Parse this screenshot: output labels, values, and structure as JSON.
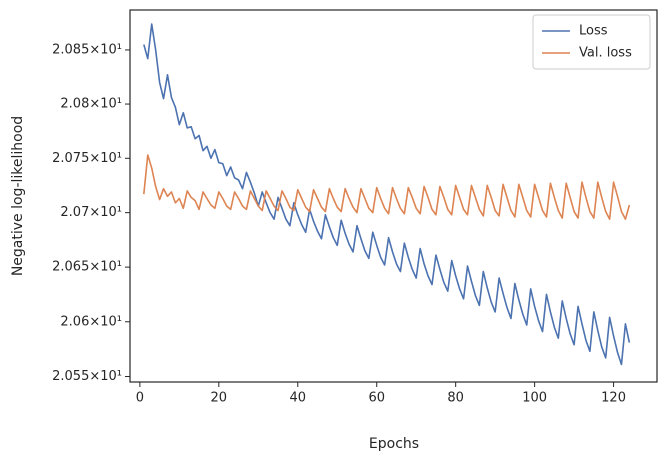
{
  "chart_data": {
    "type": "line",
    "xlabel": "Epochs",
    "ylabel": "Negative log-likelihood",
    "log_y": true,
    "grid": false,
    "legend": "upper right",
    "x": [
      1,
      2,
      3,
      4,
      5,
      6,
      7,
      8,
      9,
      10,
      11,
      12,
      13,
      14,
      15,
      16,
      17,
      18,
      19,
      20,
      21,
      22,
      23,
      24,
      25,
      26,
      27,
      28,
      29,
      30,
      31,
      32,
      33,
      34,
      35,
      36,
      37,
      38,
      39,
      40,
      41,
      42,
      43,
      44,
      45,
      46,
      47,
      48,
      49,
      50,
      51,
      52,
      53,
      54,
      55,
      56,
      57,
      58,
      59,
      60,
      61,
      62,
      63,
      64,
      65,
      66,
      67,
      68,
      69,
      70,
      71,
      72,
      73,
      74,
      75,
      76,
      77,
      78,
      79,
      80,
      81,
      82,
      83,
      84,
      85,
      86,
      87,
      88,
      89,
      90,
      91,
      92,
      93,
      94,
      95,
      96,
      97,
      98,
      99,
      100,
      101,
      102,
      103,
      104,
      105,
      106,
      107,
      108,
      109,
      110,
      111,
      112,
      113,
      114,
      115,
      116,
      117,
      118,
      119,
      120,
      121,
      122,
      123,
      124
    ],
    "xlim": [
      -2.5,
      131
    ],
    "xticks": [
      0,
      20,
      40,
      60,
      80,
      100,
      120
    ],
    "ylim": [
      20.545,
      20.887
    ],
    "yticks": [
      {
        "value": 20.85,
        "label": "2.085×10¹"
      },
      {
        "value": 20.8,
        "label": "2.08×10¹"
      },
      {
        "value": 20.75,
        "label": "2.075×10¹"
      },
      {
        "value": 20.7,
        "label": "2.07×10¹"
      },
      {
        "value": 20.65,
        "label": "2.065×10¹"
      },
      {
        "value": 20.6,
        "label": "2.06×10¹"
      },
      {
        "value": 20.55,
        "label": "2.055×10¹"
      }
    ],
    "series": [
      {
        "name": "Loss",
        "color": "#4c72b0",
        "values": [
          20.855,
          20.842,
          20.874,
          20.85,
          20.82,
          20.805,
          20.827,
          20.806,
          20.797,
          20.781,
          20.792,
          20.778,
          20.779,
          20.768,
          20.771,
          20.757,
          20.761,
          20.75,
          20.758,
          20.746,
          20.745,
          20.734,
          20.742,
          20.732,
          20.73,
          20.722,
          20.737,
          20.728,
          20.718,
          20.706,
          20.719,
          20.709,
          20.7,
          20.694,
          20.714,
          20.704,
          20.694,
          20.688,
          20.709,
          20.698,
          20.689,
          20.682,
          20.703,
          20.692,
          20.683,
          20.676,
          20.698,
          20.687,
          20.677,
          20.67,
          20.693,
          20.681,
          20.671,
          20.664,
          20.688,
          20.676,
          20.665,
          20.658,
          20.682,
          20.67,
          20.659,
          20.652,
          20.677,
          20.664,
          20.653,
          20.646,
          20.672,
          20.659,
          20.648,
          20.64,
          20.667,
          20.653,
          20.642,
          20.634,
          20.661,
          20.648,
          20.636,
          20.628,
          20.656,
          20.642,
          20.63,
          20.621,
          20.651,
          20.637,
          20.624,
          20.615,
          20.646,
          20.631,
          20.618,
          20.609,
          20.64,
          20.626,
          20.613,
          20.603,
          20.635,
          20.62,
          20.607,
          20.597,
          20.63,
          20.614,
          20.601,
          20.591,
          20.625,
          20.609,
          20.595,
          20.585,
          20.619,
          20.603,
          20.589,
          20.579,
          20.614,
          20.598,
          20.583,
          20.573,
          20.609,
          20.592,
          20.577,
          20.567,
          20.604,
          20.587,
          20.572,
          20.561,
          20.598,
          20.581
        ]
      },
      {
        "name": "Val. loss",
        "color": "#dd8452",
        "values": [
          20.717,
          20.753,
          20.741,
          20.724,
          20.712,
          20.722,
          20.715,
          20.719,
          20.709,
          20.713,
          20.704,
          20.72,
          20.714,
          20.711,
          20.703,
          20.719,
          20.713,
          20.707,
          20.704,
          20.719,
          20.713,
          20.706,
          20.703,
          20.719,
          20.713,
          20.706,
          20.703,
          20.72,
          20.713,
          20.706,
          20.702,
          20.72,
          20.713,
          20.706,
          20.702,
          20.72,
          20.713,
          20.705,
          20.702,
          20.721,
          20.713,
          20.705,
          20.701,
          20.721,
          20.713,
          20.705,
          20.701,
          20.722,
          20.713,
          20.705,
          20.701,
          20.722,
          20.713,
          20.705,
          20.7,
          20.722,
          20.713,
          20.704,
          20.7,
          20.723,
          20.713,
          20.704,
          20.699,
          20.723,
          20.713,
          20.704,
          20.699,
          20.723,
          20.714,
          20.704,
          20.699,
          20.724,
          20.714,
          20.703,
          20.698,
          20.724,
          20.714,
          20.703,
          20.698,
          20.725,
          20.714,
          20.703,
          20.698,
          20.725,
          20.714,
          20.703,
          20.697,
          20.725,
          20.714,
          20.702,
          20.697,
          20.726,
          20.714,
          20.702,
          20.696,
          20.726,
          20.714,
          20.702,
          20.696,
          20.726,
          20.714,
          20.702,
          20.696,
          20.727,
          20.714,
          20.702,
          20.695,
          20.727,
          20.714,
          20.701,
          20.695,
          20.728,
          20.714,
          20.701,
          20.695,
          20.728,
          20.714,
          20.701,
          20.694,
          20.728,
          20.715,
          20.701,
          20.694,
          20.707
        ]
      }
    ]
  }
}
